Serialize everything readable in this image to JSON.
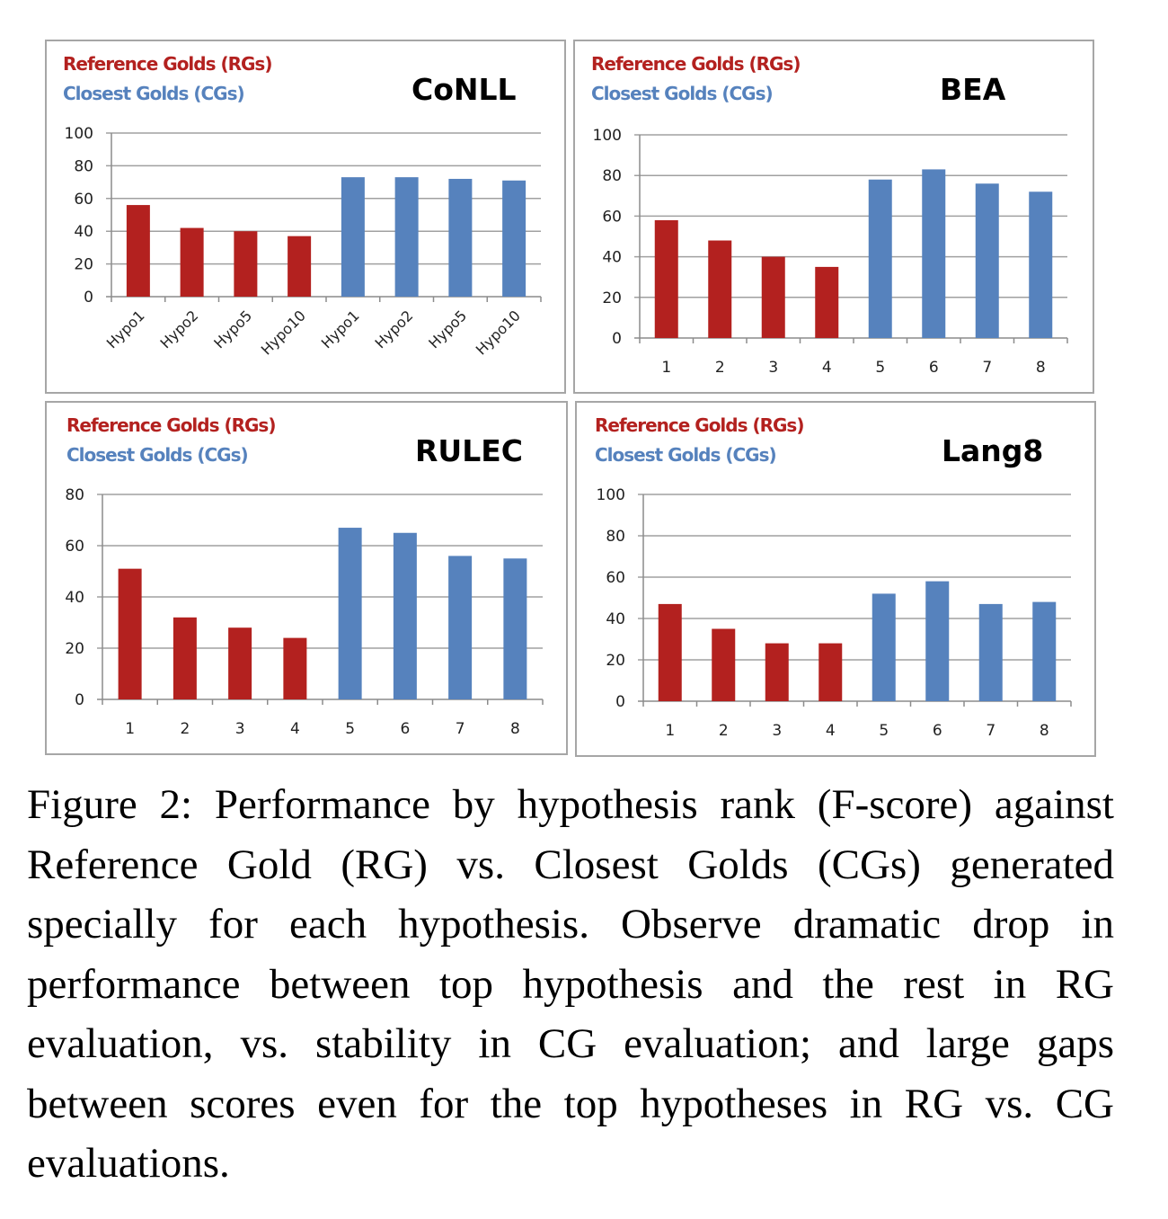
{
  "legend": {
    "rg_label": "Reference Golds (RGs)",
    "cg_label": "Closest Golds (CGs)",
    "rg_color": "#b3211f",
    "cg_color": "#5682bd"
  },
  "chart_data": [
    {
      "type": "bar",
      "title": "CoNLL",
      "categories": [
        "Hypo1",
        "Hypo2",
        "Hypo5",
        "Hypo10",
        "Hypo1",
        "Hypo2",
        "Hypo5",
        "Hypo10"
      ],
      "series": [
        {
          "name": "Reference Golds (RGs)",
          "values": [
            56,
            42,
            40,
            37,
            null,
            null,
            null,
            null
          ]
        },
        {
          "name": "Closest Golds (CGs)",
          "values": [
            null,
            null,
            null,
            null,
            73,
            73,
            72,
            71
          ]
        }
      ],
      "yticks": [
        0,
        20,
        40,
        60,
        80,
        100
      ],
      "ylim": [
        0,
        100
      ],
      "grid": true,
      "xlabel": "",
      "ylabel": ""
    },
    {
      "type": "bar",
      "title": "BEA",
      "categories": [
        "1",
        "2",
        "3",
        "4",
        "5",
        "6",
        "7",
        "8"
      ],
      "series": [
        {
          "name": "Reference Golds (RGs)",
          "values": [
            58,
            48,
            40,
            35,
            null,
            null,
            null,
            null
          ]
        },
        {
          "name": "Closest Golds (CGs)",
          "values": [
            null,
            null,
            null,
            null,
            78,
            83,
            76,
            72
          ]
        }
      ],
      "yticks": [
        0,
        20,
        40,
        60,
        80,
        100
      ],
      "ylim": [
        0,
        100
      ],
      "grid": true,
      "xlabel": "",
      "ylabel": ""
    },
    {
      "type": "bar",
      "title": "RULEC",
      "categories": [
        "1",
        "2",
        "3",
        "4",
        "5",
        "6",
        "7",
        "8"
      ],
      "series": [
        {
          "name": "Reference Golds (RGs)",
          "values": [
            51,
            32,
            28,
            24,
            null,
            null,
            null,
            null
          ]
        },
        {
          "name": "Closest Golds (CGs)",
          "values": [
            null,
            null,
            null,
            null,
            67,
            65,
            56,
            55
          ]
        }
      ],
      "yticks": [
        0,
        20,
        40,
        60,
        80
      ],
      "ylim": [
        0,
        80
      ],
      "grid": true,
      "xlabel": "",
      "ylabel": ""
    },
    {
      "type": "bar",
      "title": "Lang8",
      "categories": [
        "1",
        "2",
        "3",
        "4",
        "5",
        "6",
        "7",
        "8"
      ],
      "series": [
        {
          "name": "Reference Golds (RGs)",
          "values": [
            47,
            35,
            28,
            28,
            null,
            null,
            null,
            null
          ]
        },
        {
          "name": "Closest Golds (CGs)",
          "values": [
            null,
            null,
            null,
            null,
            52,
            58,
            47,
            48
          ]
        }
      ],
      "yticks": [
        0,
        20,
        40,
        60,
        80,
        100
      ],
      "ylim": [
        0,
        100
      ],
      "grid": true,
      "xlabel": "",
      "ylabel": ""
    }
  ],
  "caption": "Figure 2:  Performance by hypothesis rank (F-score) against Reference Gold (RG) vs. Closest Golds (CGs) generated specially for each hypothesis. Observe dra­matic drop in performance between top hypothesis and the rest in RG evaluation, vs.  stability in CG evalu­ation; and large gaps between scores even for the top hypotheses in RG vs. CG evaluations."
}
